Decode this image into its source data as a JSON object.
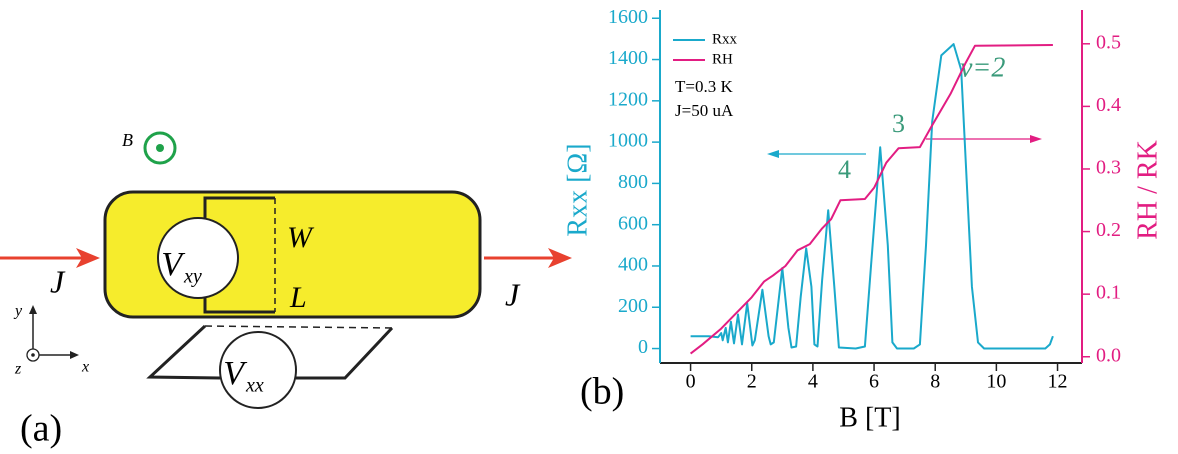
{
  "diagram": {
    "panel_label": "(a)",
    "field_label": "B",
    "current_in": "J",
    "current_out": "J",
    "vxy": {
      "main": "V",
      "sub": "xy"
    },
    "vxx": {
      "main": "V",
      "sub": "xx"
    },
    "width_label": "W",
    "length_label": "L",
    "axis_x": "x",
    "axis_y": "y",
    "axis_z": "z"
  },
  "chart_data": {
    "type": "line",
    "panel_label": "(b)",
    "x_label": "B [T]",
    "y_label": "Rxx [Ω]",
    "y2_label": "RH / RK",
    "annotations": [
      "ν=2",
      "3",
      "4"
    ],
    "conditions": [
      "T=0.3 K",
      "J=50 uA"
    ],
    "xlim": [
      -1,
      12.8
    ],
    "xticks": [
      0,
      2,
      4,
      6,
      8,
      10,
      12
    ],
    "ylim": [
      -70,
      1640
    ],
    "yticks": [
      0,
      200,
      400,
      600,
      800,
      1000,
      1200,
      1400,
      1600
    ],
    "y2lim": [
      -0.01,
      0.554
    ],
    "y2ticks": [
      {
        "value": 0,
        "label": "0.0"
      },
      0.1,
      0.2,
      0.3,
      0.4,
      0.5
    ],
    "series": [
      {
        "name": "Rxx",
        "color": "#1aa9cb",
        "x": [
          0,
          0.6,
          0.9,
          1.0,
          1.05,
          1.15,
          1.22,
          1.32,
          1.42,
          1.55,
          1.68,
          1.85,
          2.02,
          2.1,
          2.35,
          2.55,
          2.62,
          2.72,
          3.0,
          3.2,
          3.3,
          3.45,
          3.6,
          3.78,
          3.95,
          4.05,
          4.15,
          4.3,
          4.5,
          4.7,
          4.85,
          5.4,
          5.7,
          5.9,
          6.2,
          6.45,
          6.6,
          6.75,
          7.3,
          7.5,
          7.7,
          7.9,
          8.2,
          8.6,
          8.85,
          9.0,
          9.2,
          9.4,
          9.6,
          11.6,
          11.75,
          11.85
        ],
        "values": [
          60,
          60,
          55,
          75,
          40,
          100,
          30,
          130,
          25,
          165,
          20,
          220,
          15,
          40,
          285,
          60,
          20,
          30,
          390,
          100,
          5,
          10,
          250,
          485,
          300,
          20,
          10,
          330,
          670,
          300,
          5,
          0,
          10,
          400,
          975,
          500,
          30,
          0,
          0,
          20,
          500,
          1100,
          1420,
          1475,
          1350,
          900,
          300,
          30,
          0,
          0,
          20,
          60
        ]
      },
      {
        "name": "RH",
        "color": "#e21d82",
        "axis": "y2",
        "x": [
          0,
          0.4,
          1,
          1.5,
          2,
          2.4,
          2.7,
          3.1,
          3.5,
          3.9,
          4.3,
          4.6,
          4.9,
          5.7,
          6.0,
          6.4,
          6.8,
          7.5,
          7.9,
          8.5,
          9.0,
          9.3,
          11.85
        ],
        "values": [
          0.005,
          0.02,
          0.045,
          0.07,
          0.095,
          0.12,
          0.13,
          0.145,
          0.17,
          0.18,
          0.205,
          0.22,
          0.25,
          0.252,
          0.27,
          0.31,
          0.333,
          0.335,
          0.37,
          0.42,
          0.47,
          0.497,
          0.498
        ]
      }
    ]
  }
}
